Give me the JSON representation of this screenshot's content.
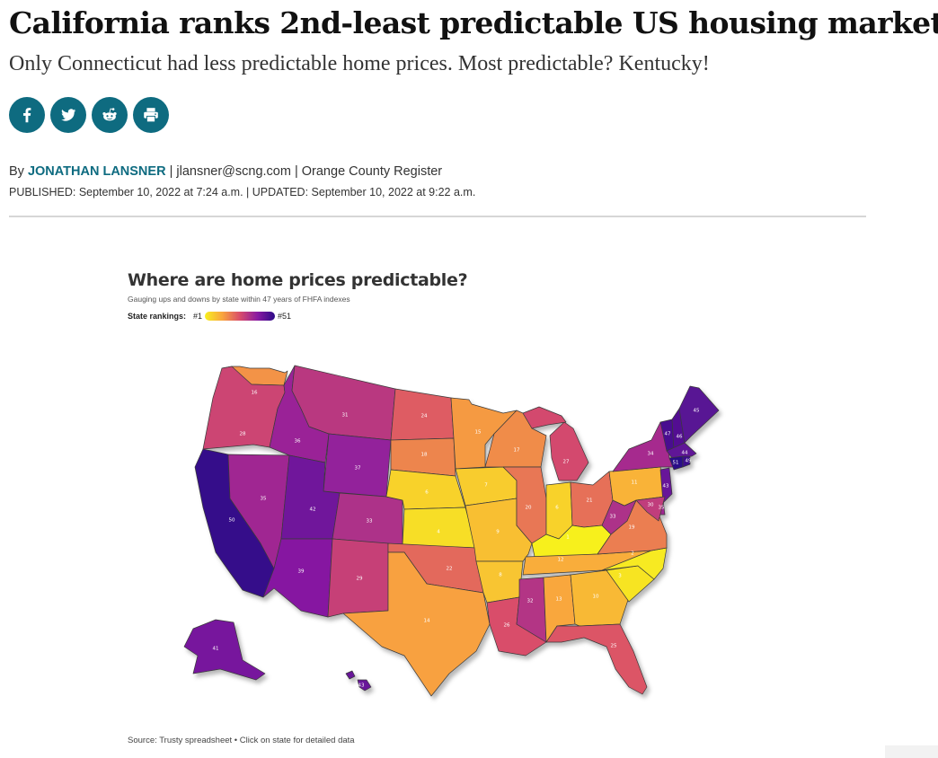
{
  "article": {
    "headline": "California ranks 2nd-least predictable US housing market",
    "dek": "Only Connecticut had less predictable home prices. Most predictable? Kentucky!",
    "byline_prefix": "By ",
    "author": "JONATHAN LANSNER",
    "byline_email": " | jlansner@scng.com | ",
    "byline_outlet": "Orange County Register",
    "published_label": "PUBLISHED: ",
    "published": "September 10, 2022 at 7:24 a.m.",
    "updated_sep": " | ",
    "updated_label": "UPDATED: ",
    "updated": "September 10, 2022 at 9:22 a.m."
  },
  "share": [
    {
      "icon": "facebook-icon"
    },
    {
      "icon": "twitter-icon"
    },
    {
      "icon": "reddit-icon"
    },
    {
      "icon": "print-icon"
    }
  ],
  "graphic": {
    "title": "Where are home prices predictable?",
    "subtitle": "Gauging ups and downs by state within 47 years of FHFA indexes",
    "legend_label": "State rankings:",
    "legend_min": "#1",
    "legend_max": "#51",
    "source": "Source: Trusty spreadsheet • Click on state for detailed data"
  },
  "map_data": {
    "scale_colors": [
      "#f7f01e",
      "#f9a43e",
      "#d94d6a",
      "#8a1aa2",
      "#2c0a88"
    ],
    "rank_min": 1,
    "rank_max": 51,
    "states": [
      {
        "id": "WA",
        "rank": 16
      },
      {
        "id": "OR",
        "rank": 28
      },
      {
        "id": "CA",
        "rank": 50
      },
      {
        "id": "NV",
        "rank": 35
      },
      {
        "id": "ID",
        "rank": 36
      },
      {
        "id": "MT",
        "rank": 31
      },
      {
        "id": "WY",
        "rank": 37
      },
      {
        "id": "UT",
        "rank": 42
      },
      {
        "id": "AZ",
        "rank": 39
      },
      {
        "id": "CO",
        "rank": 33
      },
      {
        "id": "NM",
        "rank": 29
      },
      {
        "id": "ND",
        "rank": 24
      },
      {
        "id": "SD",
        "rank": 18
      },
      {
        "id": "NE",
        "rank": 6
      },
      {
        "id": "KS",
        "rank": 4
      },
      {
        "id": "OK",
        "rank": 22
      },
      {
        "id": "TX",
        "rank": 14
      },
      {
        "id": "MN",
        "rank": 15
      },
      {
        "id": "IA",
        "rank": 7
      },
      {
        "id": "MO",
        "rank": 9
      },
      {
        "id": "AR",
        "rank": 8
      },
      {
        "id": "LA",
        "rank": 26
      },
      {
        "id": "WI",
        "rank": 17
      },
      {
        "id": "IL",
        "rank": 20
      },
      {
        "id": "MI",
        "rank": 27
      },
      {
        "id": "IN",
        "rank": 6
      },
      {
        "id": "OH",
        "rank": 21
      },
      {
        "id": "KY",
        "rank": 1
      },
      {
        "id": "TN",
        "rank": 12
      },
      {
        "id": "MS",
        "rank": 32
      },
      {
        "id": "AL",
        "rank": 13
      },
      {
        "id": "GA",
        "rank": 10
      },
      {
        "id": "FL",
        "rank": 25
      },
      {
        "id": "SC",
        "rank": 3
      },
      {
        "id": "NC",
        "rank": 2
      },
      {
        "id": "VA",
        "rank": 19
      },
      {
        "id": "WV",
        "rank": 33
      },
      {
        "id": "PA",
        "rank": 11
      },
      {
        "id": "NY",
        "rank": 34
      },
      {
        "id": "VT",
        "rank": 47
      },
      {
        "id": "NH",
        "rank": 46
      },
      {
        "id": "ME",
        "rank": 45
      },
      {
        "id": "MA",
        "rank": 44
      },
      {
        "id": "RI",
        "rank": 49
      },
      {
        "id": "CT",
        "rank": 51
      },
      {
        "id": "NJ",
        "rank": 43
      },
      {
        "id": "DE",
        "rank": 35
      },
      {
        "id": "MD",
        "rank": 30
      },
      {
        "id": "AK",
        "rank": 41
      },
      {
        "id": "HI",
        "rank": 43
      }
    ]
  }
}
